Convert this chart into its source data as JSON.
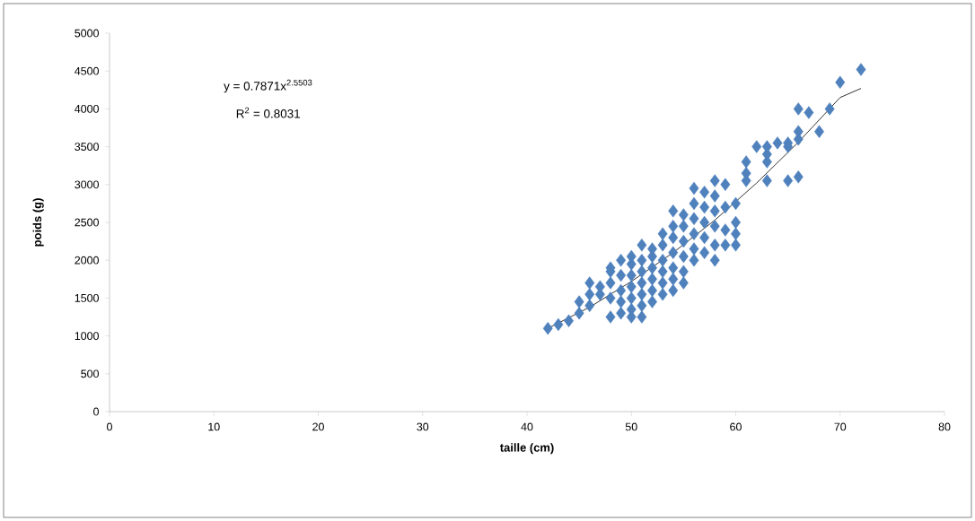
{
  "chart_data": {
    "type": "scatter",
    "xlabel": "taille (cm)",
    "ylabel": "poids (g)",
    "xlim": [
      0,
      80
    ],
    "xticks": [
      0,
      10,
      20,
      30,
      40,
      50,
      60,
      70,
      80
    ],
    "ylim": [
      0,
      5000
    ],
    "yticks": [
      0,
      500,
      1000,
      1500,
      2000,
      2500,
      3000,
      3500,
      4000,
      4500,
      5000
    ],
    "marker": "diamond",
    "annotations": [
      "y = 0.7871x$^{2.5503}$",
      "R$^{2}$ = 0.8031"
    ],
    "series": [
      {
        "color": "#4f81bd",
        "x": [
          42,
          43,
          44,
          45,
          45,
          46,
          46,
          46,
          47,
          47,
          48,
          48,
          48,
          48,
          48,
          49,
          49,
          49,
          49,
          49,
          50,
          50,
          50,
          50,
          50,
          50,
          50,
          51,
          51,
          51,
          51,
          51,
          51,
          51,
          52,
          52,
          52,
          52,
          52,
          52,
          53,
          53,
          53,
          53,
          53,
          53,
          54,
          54,
          54,
          54,
          54,
          54,
          54,
          55,
          55,
          55,
          55,
          55,
          55,
          56,
          56,
          56,
          56,
          56,
          56,
          57,
          57,
          57,
          57,
          57,
          58,
          58,
          58,
          58,
          58,
          58,
          59,
          59,
          59,
          59,
          60,
          60,
          60,
          60,
          61,
          61,
          61,
          62,
          63,
          63,
          63,
          63,
          64,
          65,
          65,
          65,
          66,
          66,
          66,
          66,
          67,
          68,
          69,
          70,
          72
        ],
        "values": [
          1100,
          1150,
          1200,
          1300,
          1450,
          1400,
          1550,
          1700,
          1550,
          1650,
          1250,
          1500,
          1700,
          1850,
          1900,
          1300,
          1450,
          1600,
          1800,
          2000,
          1250,
          1350,
          1500,
          1650,
          1800,
          1950,
          2050,
          1250,
          1400,
          1550,
          1700,
          1850,
          2000,
          2200,
          1450,
          1600,
          1750,
          1900,
          2050,
          2150,
          1550,
          1700,
          1850,
          2000,
          2200,
          2350,
          1600,
          1750,
          1900,
          2100,
          2300,
          2450,
          2650,
          1700,
          1850,
          2050,
          2250,
          2450,
          2600,
          2000,
          2150,
          2350,
          2550,
          2750,
          2950,
          2100,
          2300,
          2500,
          2700,
          2900,
          2000,
          2200,
          2450,
          2650,
          2850,
          3050,
          2200,
          2400,
          2700,
          3000,
          2200,
          2350,
          2500,
          2750,
          3050,
          3150,
          3300,
          3500,
          3050,
          3300,
          3400,
          3500,
          3550,
          3050,
          3500,
          3550,
          3100,
          3600,
          3700,
          4000,
          3950,
          3700,
          4000,
          4350,
          4520
        ]
      },
      {
        "type": "line",
        "color": "#000000",
        "marker": "none",
        "x": [
          42,
          46,
          50,
          54,
          58,
          62,
          66,
          70,
          72
        ],
        "values": [
          1100,
          1380,
          1720,
          2100,
          2530,
          3020,
          3560,
          4150,
          4270
        ]
      }
    ]
  }
}
